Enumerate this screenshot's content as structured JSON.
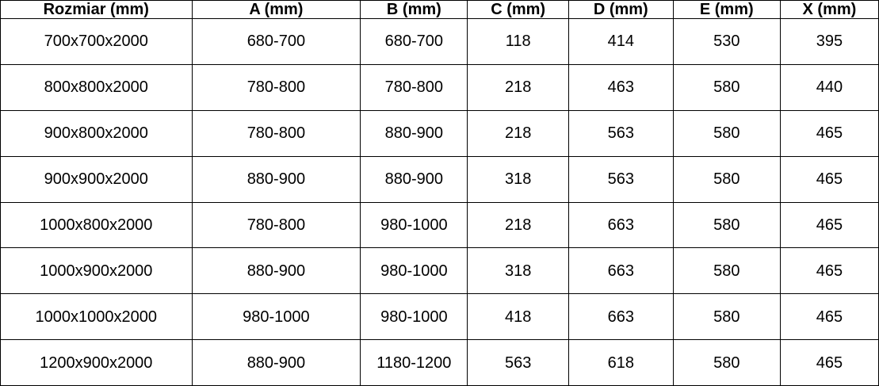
{
  "table": {
    "columns": [
      "Rozmiar (mm)",
      "A (mm)",
      "B (mm)",
      "C (mm)",
      "D (mm)",
      "E (mm)",
      "X (mm)"
    ],
    "rows": [
      [
        "700x700x2000",
        "680-700",
        "680-700",
        "118",
        "414",
        "530",
        "395"
      ],
      [
        "800x800x2000",
        "780-800",
        "780-800",
        "218",
        "463",
        "580",
        "440"
      ],
      [
        "900x800x2000",
        "780-800",
        "880-900",
        "218",
        "563",
        "580",
        "465"
      ],
      [
        "900x900x2000",
        "880-900",
        "880-900",
        "318",
        "563",
        "580",
        "465"
      ],
      [
        "1000x800x2000",
        "780-800",
        "980-1000",
        "218",
        "663",
        "580",
        "465"
      ],
      [
        "1000x900x2000",
        "880-900",
        "980-1000",
        "318",
        "663",
        "580",
        "465"
      ],
      [
        "1000x1000x2000",
        "980-1000",
        "980-1000",
        "418",
        "663",
        "580",
        "465"
      ],
      [
        "1200x900x2000",
        "880-900",
        "1180-1200",
        "563",
        "618",
        "580",
        "465"
      ]
    ],
    "column_widths_pct": [
      21.8,
      19.2,
      12.2,
      11.5,
      11.9,
      12.2,
      11.2
    ],
    "text_color": "#000000",
    "border_color": "#000000",
    "background_color": "#ffffff"
  }
}
